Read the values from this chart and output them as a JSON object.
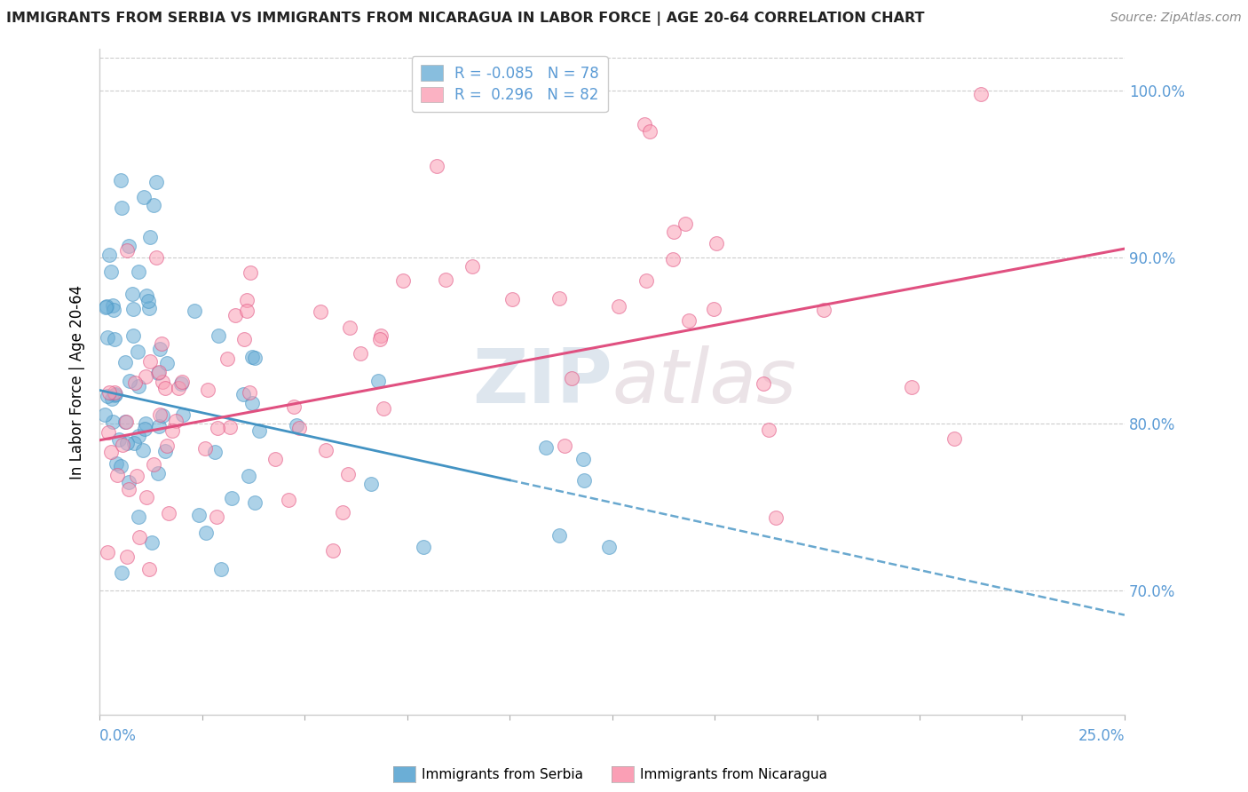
{
  "title": "IMMIGRANTS FROM SERBIA VS IMMIGRANTS FROM NICARAGUA IN LABOR FORCE | AGE 20-64 CORRELATION CHART",
  "source": "Source: ZipAtlas.com",
  "ylabel": "In Labor Force | Age 20-64",
  "serbia_color": "#6baed6",
  "serbia_edge": "#4393c3",
  "nicaragua_color": "#fa9fb5",
  "nicaragua_edge": "#e05080",
  "trend_serbia_color": "#4393c3",
  "trend_nicaragua_color": "#e05080",
  "serbia_R": -0.085,
  "serbia_N": 78,
  "nicaragua_R": 0.296,
  "nicaragua_N": 82,
  "watermark_text": "ZIPatlas",
  "xlim": [
    0.0,
    0.25
  ],
  "ylim": [
    0.625,
    1.025
  ],
  "yticks": [
    0.7,
    0.8,
    0.9,
    1.0
  ],
  "ytick_labels": [
    "70.0%",
    "80.0%",
    "90.0%",
    "100.0%"
  ],
  "serbia_seed": 42,
  "nicaragua_seed": 77,
  "legend_R_serbia": "R = -0.085",
  "legend_N_serbia": "N = 78",
  "legend_R_nicaragua": "R =  0.296",
  "legend_N_nicaragua": "N = 82"
}
